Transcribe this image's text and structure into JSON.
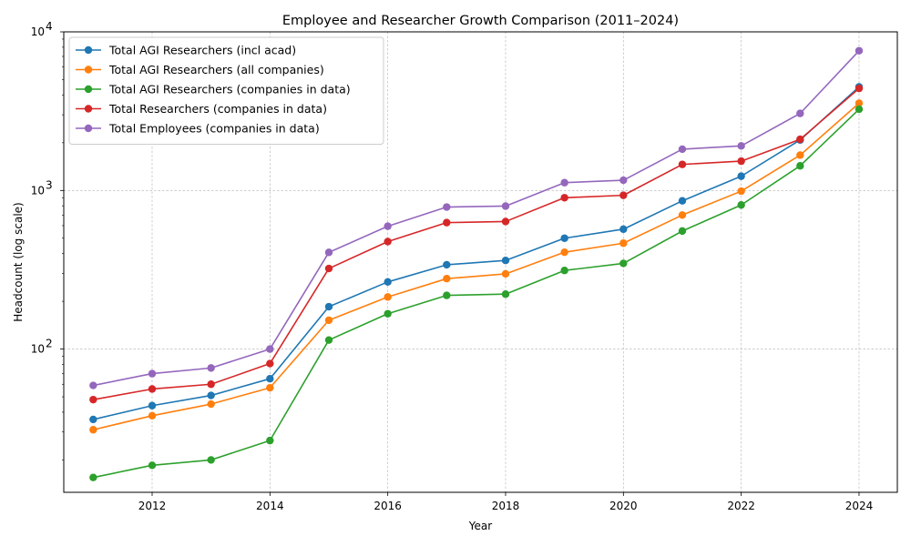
{
  "chart_data": {
    "type": "line",
    "title": "Employee and Researcher Growth Comparison (2011–2024)",
    "xlabel": "Year",
    "ylabel": "Headcount (log scale)",
    "y_scale": "log",
    "xlim": [
      2010.5,
      2024.65
    ],
    "ylim": [
      12.5,
      10000
    ],
    "x_ticks": [
      2012,
      2014,
      2016,
      2018,
      2020,
      2022,
      2024
    ],
    "y_ticks": [
      {
        "value": 100,
        "label": "10",
        "exp": "2"
      },
      {
        "value": 1000,
        "label": "10",
        "exp": "3"
      },
      {
        "value": 10000,
        "label": "10",
        "exp": "4"
      }
    ],
    "grid": true,
    "legend_position": "top-left",
    "x": [
      2011,
      2012,
      2013,
      2014,
      2015,
      2016,
      2017,
      2018,
      2019,
      2020,
      2021,
      2022,
      2023,
      2024
    ],
    "series": [
      {
        "name": "Total AGI Researchers (incl acad)",
        "color": "#1f77b4",
        "values": [
          36,
          44,
          51,
          65,
          185,
          265,
          340,
          362,
          500,
          570,
          860,
          1230,
          2080,
          4500
        ]
      },
      {
        "name": "Total AGI Researchers (all companies)",
        "color": "#ff7f0e",
        "values": [
          31,
          38,
          45,
          57,
          152,
          213,
          278,
          298,
          408,
          465,
          700,
          990,
          1670,
          3550
        ]
      },
      {
        "name": "Total AGI Researchers (companies in data)",
        "color": "#2ca02c",
        "values": [
          15.5,
          18.5,
          20,
          26.5,
          114,
          167,
          218,
          222,
          313,
          347,
          555,
          810,
          1430,
          3250
        ]
      },
      {
        "name": "Total Researchers (companies in data)",
        "color": "#d62728",
        "values": [
          48,
          56,
          60,
          81,
          322,
          476,
          627,
          637,
          900,
          932,
          1460,
          1530,
          2100,
          4400
        ]
      },
      {
        "name": "Total Employees (companies in data)",
        "color": "#9467bd",
        "values": [
          59,
          70,
          76,
          100,
          407,
          595,
          786,
          797,
          1120,
          1160,
          1820,
          1910,
          3060,
          7600
        ]
      }
    ]
  }
}
